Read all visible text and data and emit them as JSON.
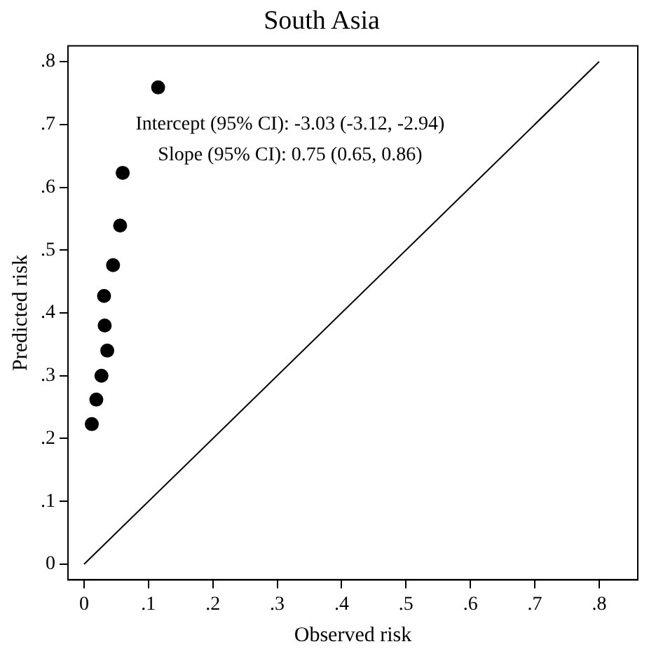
{
  "chart_data": {
    "type": "scatter",
    "title": "South Asia",
    "xlabel": "Observed risk",
    "ylabel": "Predicted risk",
    "annotations": [
      "Intercept (95% CI): -3.03 (-3.12, -2.94)",
      "Slope (95% CI): 0.75 (0.65, 0.86)"
    ],
    "xlim": [
      -0.025,
      0.86
    ],
    "ylim": [
      -0.025,
      0.825
    ],
    "xticks": [
      {
        "value": 0,
        "label": "0"
      },
      {
        "value": 0.1,
        "label": ".1"
      },
      {
        "value": 0.2,
        "label": ".2"
      },
      {
        "value": 0.3,
        "label": ".3"
      },
      {
        "value": 0.4,
        "label": ".4"
      },
      {
        "value": 0.5,
        "label": ".5"
      },
      {
        "value": 0.6,
        "label": ".6"
      },
      {
        "value": 0.7,
        "label": ".7"
      },
      {
        "value": 0.8,
        "label": ".8"
      }
    ],
    "yticks": [
      {
        "value": 0,
        "label": "0"
      },
      {
        "value": 0.1,
        "label": ".1"
      },
      {
        "value": 0.2,
        "label": ".2"
      },
      {
        "value": 0.3,
        "label": ".3"
      },
      {
        "value": 0.4,
        "label": ".4"
      },
      {
        "value": 0.5,
        "label": ".5"
      },
      {
        "value": 0.6,
        "label": ".6"
      },
      {
        "value": 0.7,
        "label": ".7"
      },
      {
        "value": 0.8,
        "label": ".8"
      }
    ],
    "grid": false,
    "legend": false,
    "marker": "circle",
    "series": [
      {
        "color": "#000000",
        "x": [
          0.115,
          0.06,
          0.056,
          0.045,
          0.031,
          0.032,
          0.036,
          0.027,
          0.019,
          0.012
        ],
        "values": [
          0.759,
          0.623,
          0.539,
          0.476,
          0.427,
          0.38,
          0.34,
          0.3,
          0.262,
          0.223
        ]
      },
      {
        "type": "line",
        "color": "#000000",
        "marker": "none",
        "x": [
          0,
          0.8
        ],
        "values": [
          0,
          0.8
        ]
      }
    ]
  }
}
